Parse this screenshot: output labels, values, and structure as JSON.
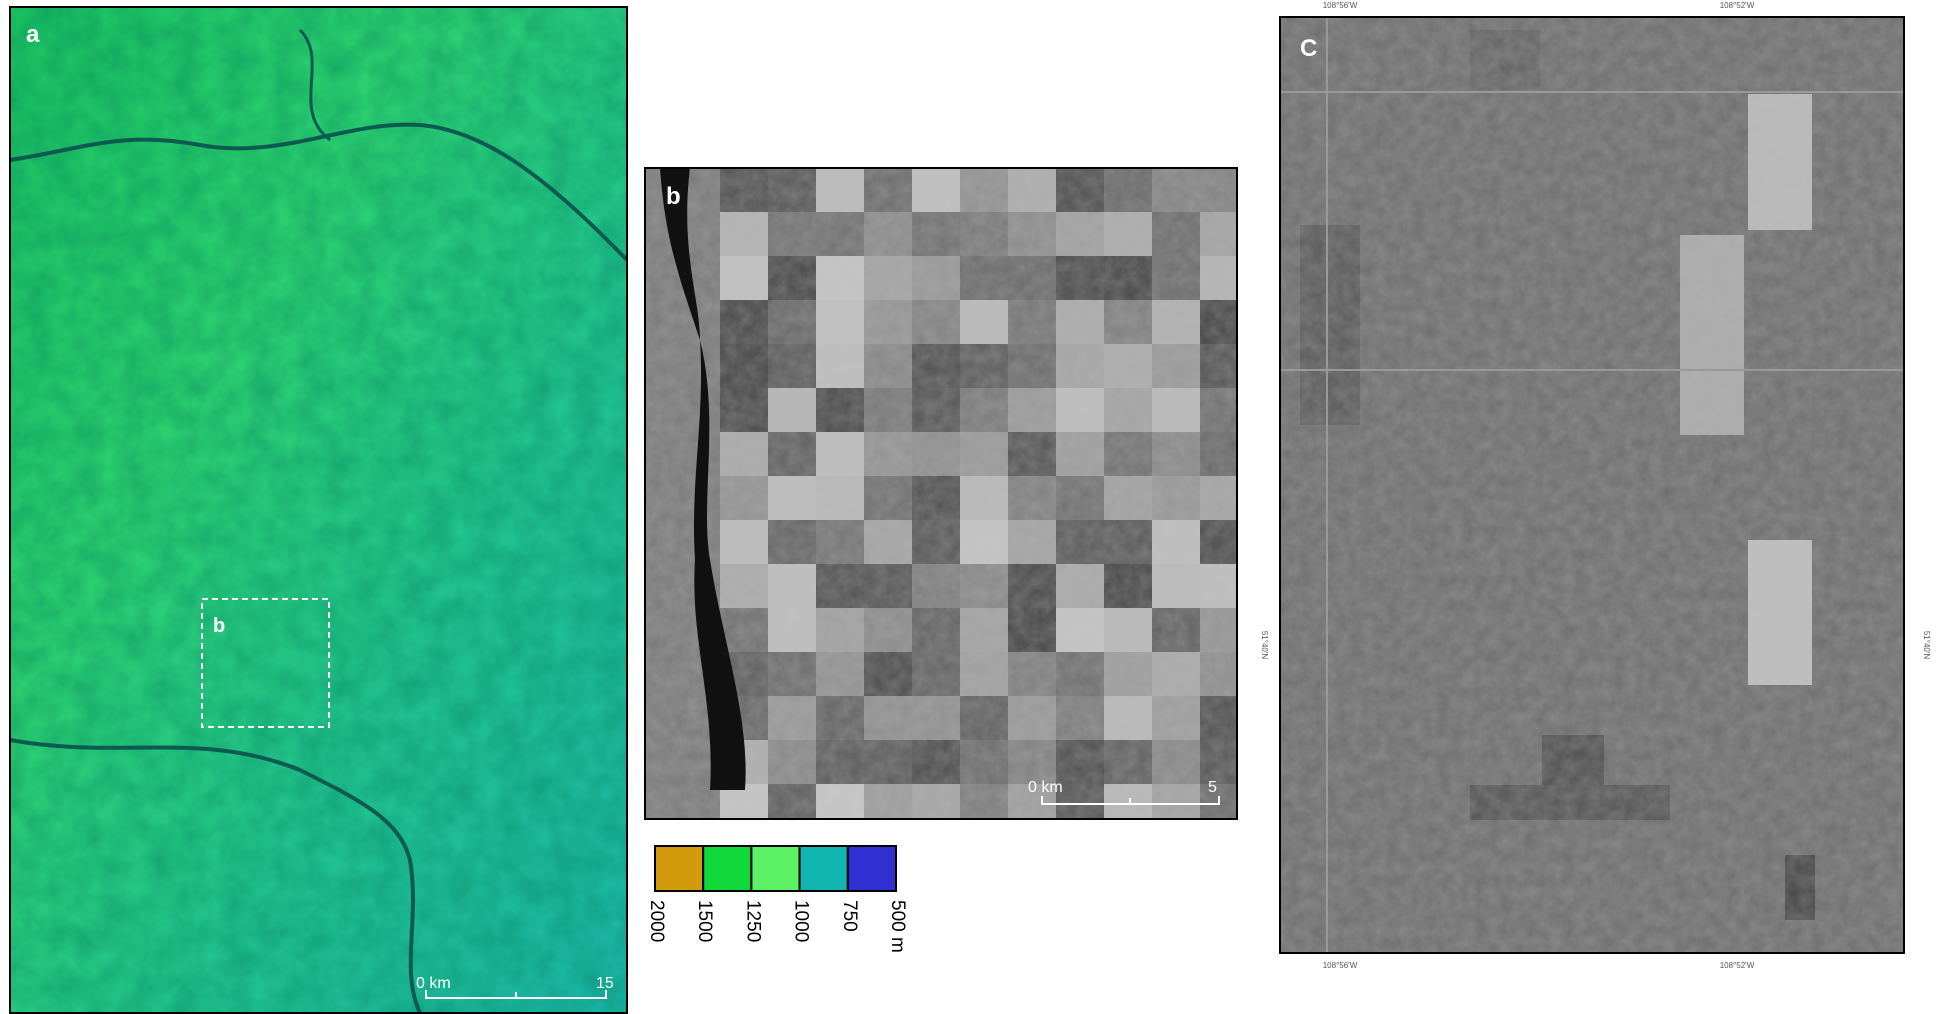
{
  "panels": {
    "a": {
      "label": "a",
      "inset_label": "b",
      "scale_start": "0 km",
      "scale_end": "15"
    },
    "b": {
      "label": "b",
      "scale_start": "0 km",
      "scale_end": "5"
    },
    "c": {
      "label": "C",
      "top_left": "108°56'W",
      "top_right": "108°52'W",
      "bottom_left": "108°56'W",
      "bottom_right": "108°52'W",
      "left": "51°40'N",
      "right": "51°40'N"
    }
  },
  "legend": {
    "items": [
      {
        "label": "2000",
        "color": "#d29a0c"
      },
      {
        "label": "1500",
        "color": "#10d83a"
      },
      {
        "label": "1250",
        "color": "#5cf064"
      },
      {
        "label": "1000",
        "color": "#10b5b0"
      },
      {
        "label": "750",
        "color": "#10b5b0"
      },
      {
        "label": "500 m",
        "color": "#3030d0"
      }
    ]
  }
}
